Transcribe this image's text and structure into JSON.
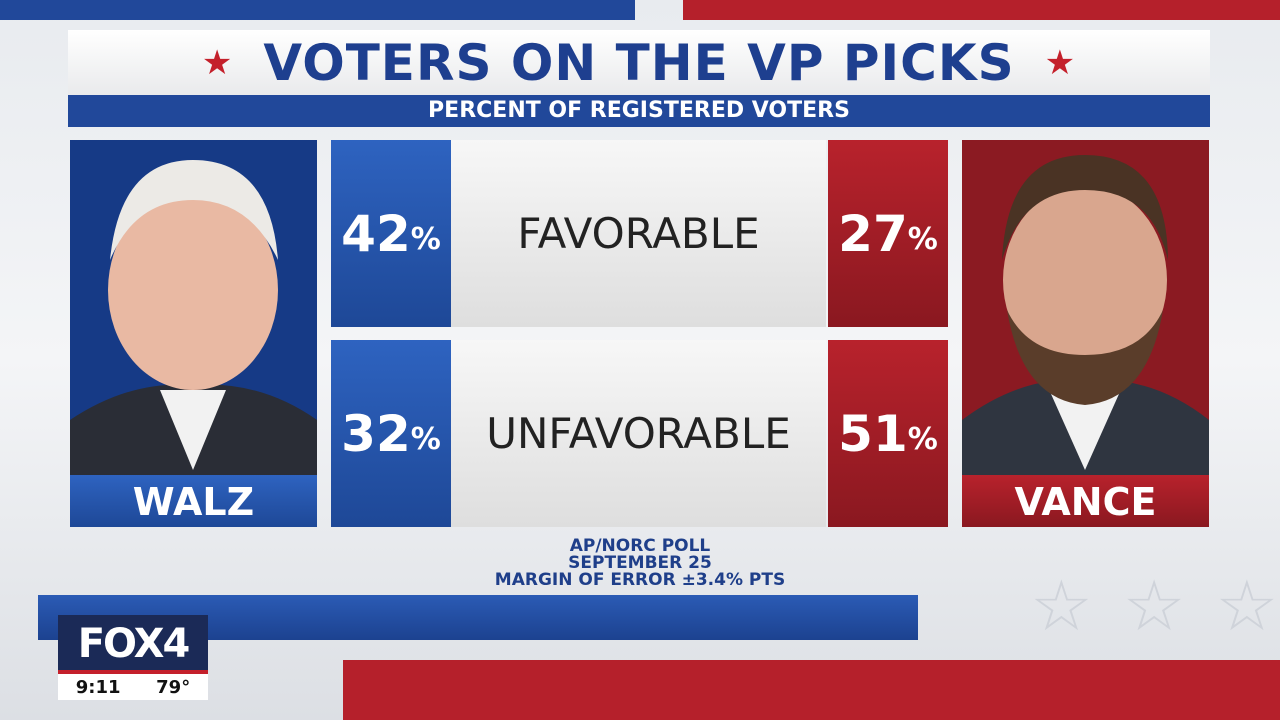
{
  "header": {
    "title": "VOTERS ON THE VP PICKS",
    "subtitle": "PERCENT OF REGISTERED VOTERS"
  },
  "candidates": {
    "left": "WALZ",
    "right": "VANCE"
  },
  "rows": [
    {
      "label": "FAVORABLE",
      "left": {
        "number": 42,
        "unit": "%"
      },
      "right": {
        "number": 27,
        "unit": "%"
      }
    },
    {
      "label": "UNFAVORABLE",
      "left": {
        "number": 32,
        "unit": "%"
      },
      "right": {
        "number": 51,
        "unit": "%"
      }
    }
  ],
  "source": [
    "AP/NORC POLL",
    "SEPTEMBER 25",
    "MARGIN OF ERROR ±3.4% PTS"
  ],
  "station": {
    "logo": "FOX4",
    "time": "9:11",
    "temperature": "79°"
  }
}
